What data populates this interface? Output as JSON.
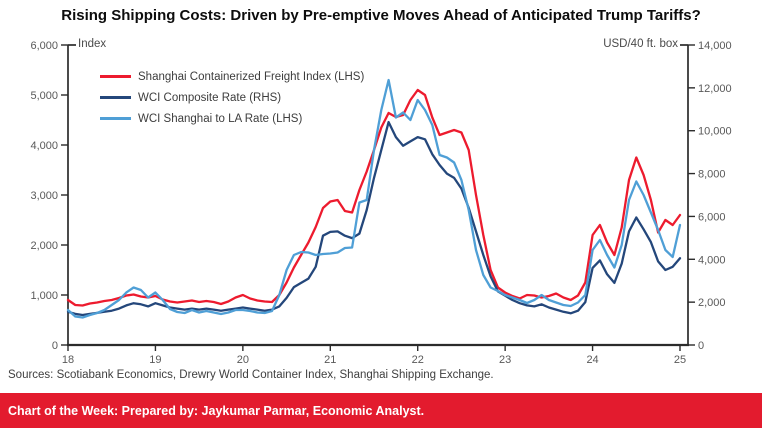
{
  "title": "Rising Shipping Costs: Driven by Pre-emptive Moves Ahead of Anticipated Trump Tariffs?",
  "left_axis": {
    "label": "Index",
    "ticks": [
      "6,000",
      "5,000",
      "4,000",
      "3,000",
      "2,000",
      "1,000",
      "0"
    ]
  },
  "right_axis": {
    "label": "USD/40 ft. box",
    "ticks": [
      "14,000",
      "12,000",
      "10,000",
      "8,000",
      "6,000",
      "4,000",
      "2,000",
      "0"
    ]
  },
  "x_axis": {
    "ticks": [
      "18",
      "19",
      "20",
      "21",
      "22",
      "23",
      "24",
      "25"
    ]
  },
  "legend": [
    {
      "label": "Shanghai Containerized Freight Index (LHS)",
      "color": "#ed1b2e"
    },
    {
      "label": "WCI Composite Rate (RHS)",
      "color": "#24477b"
    },
    {
      "label": "WCI Shanghai to LA Rate (LHS)",
      "color": "#4f9fd6"
    }
  ],
  "sources": "Sources: Scotiabank Economics, Drewry World Container Index, Shanghai Shipping Exchange.",
  "footer": {
    "text": "Chart of the Week: Prepared by: Jaykumar Parmar, Economic Analyst.",
    "bg": "#e31b2e",
    "fg": "#ffffff"
  },
  "chart_data": {
    "type": "line",
    "x_unit": "year",
    "x_range": [
      2018,
      2025
    ],
    "x_step": 0.0833333,
    "left_ylim": [
      0,
      6000
    ],
    "right_ylim": [
      0,
      14000
    ],
    "grid": false,
    "legend_position": "upper-left",
    "series": [
      {
        "name": "Shanghai Containerized Freight Index (LHS)",
        "axis": "left",
        "color": "#ed1b2e",
        "values": [
          900,
          800,
          790,
          830,
          850,
          880,
          900,
          940,
          990,
          1010,
          970,
          950,
          980,
          910,
          870,
          850,
          870,
          890,
          860,
          880,
          860,
          820,
          870,
          950,
          1000,
          930,
          890,
          870,
          860,
          1000,
          1250,
          1550,
          1800,
          2050,
          2360,
          2740,
          2870,
          2900,
          2680,
          2650,
          3100,
          3470,
          3900,
          4350,
          4640,
          4560,
          4600,
          4900,
          5100,
          5000,
          4550,
          4200,
          4250,
          4300,
          4250,
          3900,
          3000,
          2200,
          1500,
          1150,
          1050,
          980,
          930,
          1000,
          990,
          950,
          980,
          1030,
          950,
          900,
          990,
          1250,
          2200,
          2400,
          2050,
          1800,
          2350,
          3300,
          3750,
          3400,
          2900,
          2250,
          2500,
          2400,
          2600
        ]
      },
      {
        "name": "WCI Composite Rate (RHS)",
        "axis": "right",
        "color": "#24477b",
        "values": [
          1550,
          1450,
          1400,
          1450,
          1500,
          1550,
          1600,
          1700,
          1850,
          1950,
          1900,
          1800,
          1950,
          1850,
          1750,
          1700,
          1650,
          1700,
          1650,
          1700,
          1650,
          1600,
          1650,
          1700,
          1750,
          1700,
          1650,
          1600,
          1650,
          1800,
          2200,
          2700,
          2900,
          3100,
          3650,
          5100,
          5280,
          5300,
          5100,
          4990,
          5200,
          6300,
          7800,
          9100,
          10400,
          9700,
          9300,
          9500,
          9700,
          9600,
          8900,
          8400,
          8000,
          7800,
          7300,
          6400,
          5300,
          4200,
          3200,
          2500,
          2300,
          2100,
          1950,
          1850,
          1800,
          1900,
          1750,
          1650,
          1550,
          1480,
          1600,
          2000,
          3600,
          3950,
          3300,
          2900,
          3800,
          5300,
          5950,
          5400,
          4800,
          3900,
          3500,
          3650,
          4050
        ]
      },
      {
        "name": "WCI Shanghai to LA Rate (LHS)",
        "axis": "left",
        "color": "#4f9fd6",
        "values": [
          700,
          570,
          550,
          600,
          640,
          700,
          800,
          900,
          1050,
          1150,
          1100,
          950,
          1050,
          900,
          720,
          660,
          640,
          700,
          650,
          680,
          650,
          620,
          650,
          700,
          700,
          680,
          650,
          640,
          680,
          1000,
          1500,
          1800,
          1860,
          1850,
          1800,
          1820,
          1830,
          1850,
          1940,
          1950,
          2850,
          2900,
          3900,
          4700,
          5300,
          4550,
          4650,
          4500,
          4900,
          4700,
          4400,
          3800,
          3750,
          3650,
          3300,
          2700,
          1900,
          1400,
          1150,
          1080,
          1000,
          950,
          900,
          840,
          900,
          1000,
          900,
          850,
          800,
          780,
          850,
          1000,
          1900,
          2100,
          1800,
          1550,
          2000,
          2900,
          3270,
          3000,
          2650,
          2300,
          1900,
          1760,
          2400
        ]
      }
    ]
  }
}
